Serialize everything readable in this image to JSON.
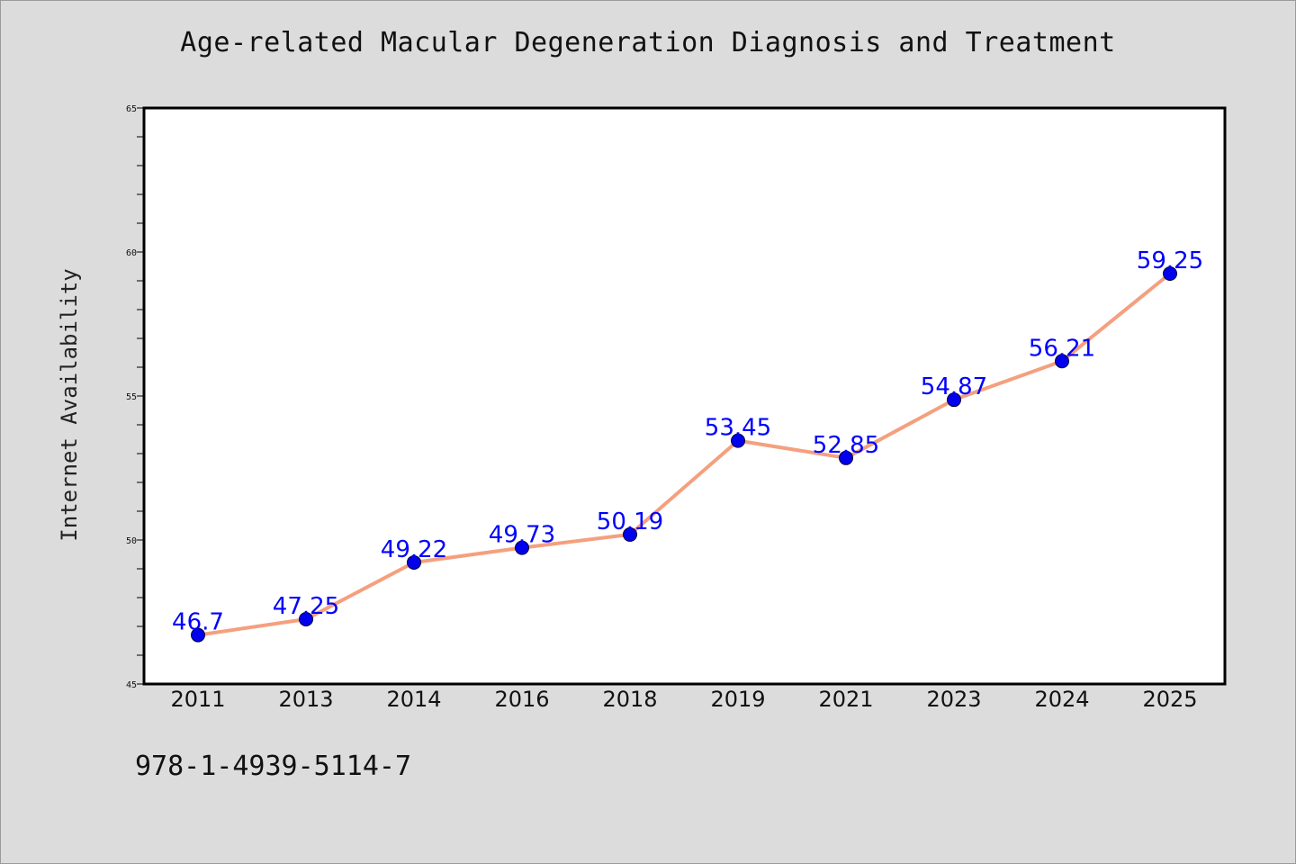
{
  "chart_data": {
    "type": "line",
    "title": "Age-related Macular Degeneration Diagnosis and Treatment",
    "xlabel": "",
    "ylabel": "Internet Availability",
    "categories": [
      "2011",
      "2013",
      "2014",
      "2016",
      "2018",
      "2019",
      "2021",
      "2023",
      "2024",
      "2025"
    ],
    "series": [
      {
        "values": [
          46.7,
          47.25,
          49.22,
          49.73,
          50.19,
          53.45,
          52.85,
          54.87,
          56.21,
          59.25
        ],
        "data_labels": [
          "46.7",
          "47.25",
          "49.22",
          "49.73",
          "50.19",
          "53.45",
          "52.85",
          "54.87",
          "56.21",
          "59.25"
        ],
        "line_color": "#f4a07e",
        "marker_color": "#0000ee",
        "label_color": "#0000ff"
      }
    ],
    "ylim": [
      45,
      65
    ],
    "yticks": [
      "45",
      "50",
      "55",
      "60",
      "65"
    ],
    "grid": false,
    "legend": "none"
  },
  "footnote": "978-1-4939-5114-7"
}
